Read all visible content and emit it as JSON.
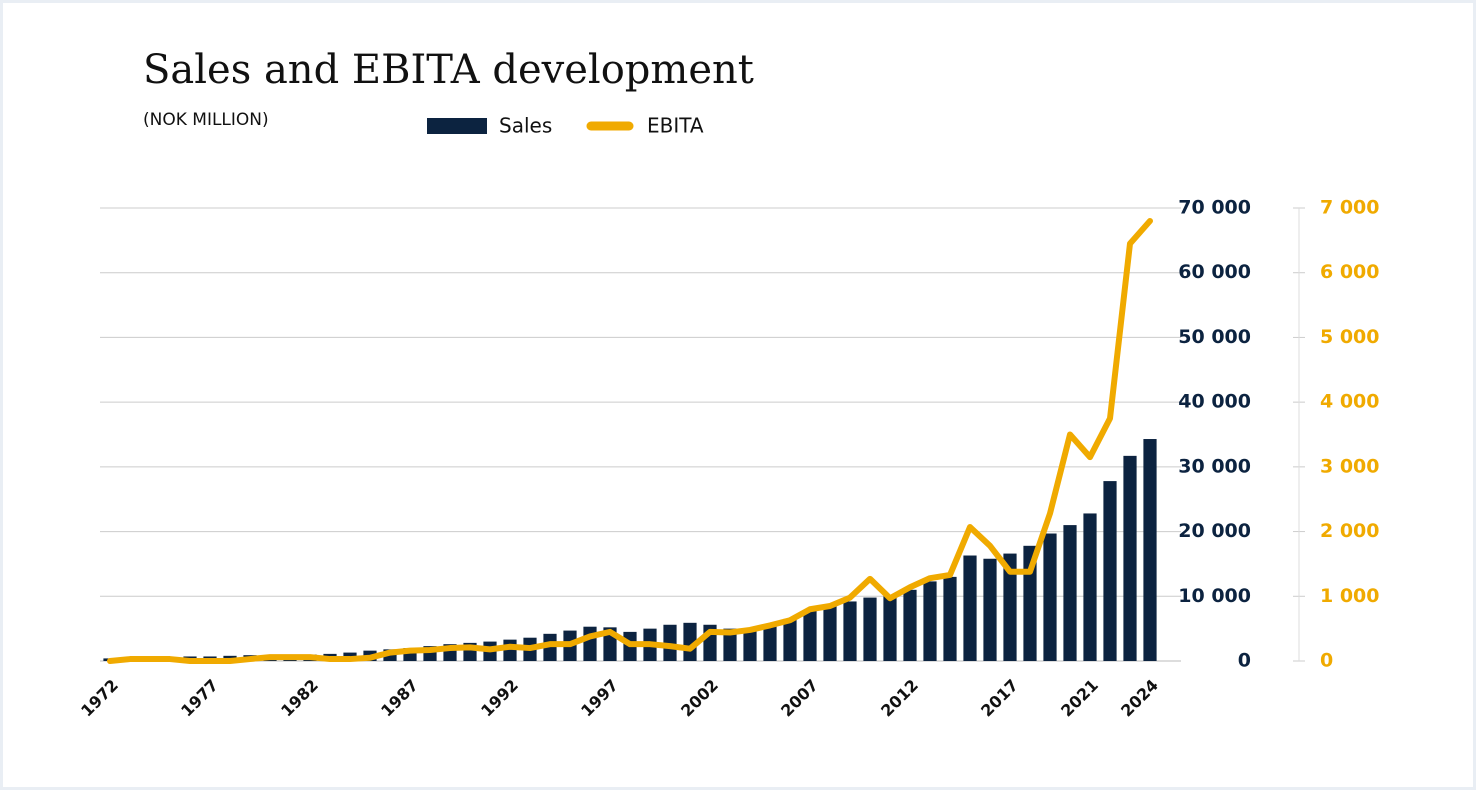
{
  "chart_data": {
    "type": "bar-line",
    "title": "Sales and EBITA development",
    "subtitle": "(NOK MILLION)",
    "categories": [
      "1972",
      null,
      null,
      null,
      null,
      "1977",
      null,
      null,
      null,
      null,
      "1982",
      null,
      null,
      null,
      null,
      "1987",
      null,
      null,
      null,
      null,
      "1992",
      null,
      null,
      null,
      null,
      "1997",
      null,
      null,
      null,
      null,
      "2002",
      null,
      null,
      null,
      null,
      "2007",
      null,
      null,
      null,
      null,
      "2012",
      null,
      null,
      null,
      null,
      "2017",
      null,
      null,
      null,
      "2021",
      null,
      null,
      "2024"
    ],
    "series": [
      {
        "name": "Sales",
        "type": "bar",
        "color": "#0c2340",
        "axis": "y",
        "values": [
          400,
          500,
          500,
          600,
          700,
          700,
          800,
          900,
          900,
          1000,
          1000,
          1100,
          1300,
          1600,
          1800,
          2000,
          2300,
          2600,
          2800,
          3000,
          3300,
          3600,
          4200,
          4700,
          5300,
          5200,
          4500,
          5000,
          5600,
          5900,
          5600,
          5000,
          5000,
          5500,
          6500,
          7800,
          8500,
          9200,
          9800,
          10000,
          11000,
          12300,
          13000,
          16300,
          15800,
          16600,
          17800,
          19700,
          21000,
          22800,
          27800,
          31700,
          34300
        ]
      },
      {
        "name": "EBITA",
        "type": "line",
        "color": "#f0aa00",
        "axis": "y2",
        "values": [
          0,
          30,
          30,
          30,
          0,
          0,
          0,
          30,
          60,
          60,
          60,
          30,
          30,
          50,
          130,
          160,
          170,
          200,
          210,
          180,
          220,
          200,
          260,
          260,
          380,
          450,
          260,
          260,
          230,
          190,
          450,
          440,
          480,
          550,
          630,
          800,
          850,
          980,
          1270,
          970,
          1140,
          1280,
          1330,
          2070,
          1780,
          1380,
          1380,
          2280,
          3500,
          3150,
          3750,
          6450,
          6800
        ]
      }
    ],
    "ylim": [
      0,
      70000
    ],
    "yticks": [
      0,
      {
        "value": 10000,
        "label": "10 000"
      },
      {
        "value": 20000,
        "label": "20 000"
      },
      {
        "value": 30000,
        "label": "30 000"
      },
      {
        "value": 40000,
        "label": "40 000"
      },
      {
        "value": 50000,
        "label": "50 000"
      },
      {
        "value": 60000,
        "label": "60 000"
      },
      {
        "value": 70000,
        "label": "70 000"
      }
    ],
    "y2lim": [
      0,
      7000
    ],
    "y2ticks": [
      0,
      {
        "value": 1000,
        "label": "1 000"
      },
      {
        "value": 2000,
        "label": "2 000"
      },
      {
        "value": 3000,
        "label": "3 000"
      },
      {
        "value": 4000,
        "label": "4 000"
      },
      {
        "value": 5000,
        "label": "5 000"
      },
      {
        "value": 6000,
        "label": "6 000"
      },
      {
        "value": 7000,
        "label": "7 000"
      }
    ],
    "grid": true,
    "legend": "top"
  }
}
